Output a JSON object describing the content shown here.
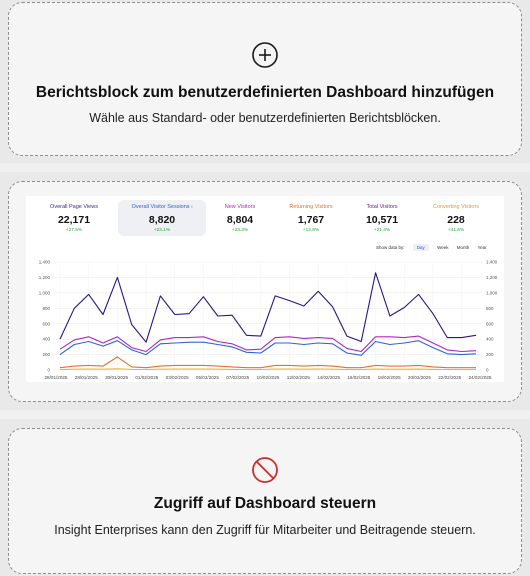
{
  "card_add": {
    "title": "Berichtsblock zum benutzerdefinierten Dashboard hinzufügen",
    "subtitle": "Wähle aus Standard- oder benutzerdefinierten Berichtsblöcken.",
    "icon": "plus-circle-icon"
  },
  "card_access": {
    "title": "Zugriff auf Dashboard steuern",
    "subtitle": "Insight Enterprises kann den Zugriff für Mitarbeiter und Beitragende steuern.",
    "icon": "no-access-icon",
    "icon_color": "#c8302e"
  },
  "metrics": [
    {
      "label": "Overall Page Views",
      "value": "22,171",
      "delta": "+27.5%",
      "color": "#3b1d8f"
    },
    {
      "label": "Overall Visitor Sessions",
      "value": "8,820",
      "delta": "+23.1%",
      "color": "#2f63d6",
      "info": "i"
    },
    {
      "label": "New Visitors",
      "value": "8,804",
      "delta": "+23.3%",
      "color": "#b024c9"
    },
    {
      "label": "Returning Visitors",
      "value": "1,767",
      "delta": "+12.8%",
      "color": "#e0742a"
    },
    {
      "label": "Total Visitors",
      "value": "10,571",
      "delta": "+21.4%",
      "color": "#6a1f8f"
    },
    {
      "label": "Converting Visitors",
      "value": "228",
      "delta": "+41.6%",
      "color": "#e89a2a"
    }
  ],
  "show_data_by": {
    "label": "Show data by:",
    "options": [
      "Day",
      "Week",
      "Month",
      "Year"
    ],
    "selected": "Day"
  },
  "chart_data": {
    "type": "line",
    "ylim": [
      0,
      1400
    ],
    "yticks": [
      "0",
      "200",
      "400",
      "600",
      "800",
      "1,000",
      "1,200",
      "1,400"
    ],
    "x_tick_labels": [
      "28/01/2025",
      "28/01/2025",
      "30/01/2025",
      "01/02/2025",
      "03/02/2025",
      "05/02/2025",
      "07/02/2025",
      "10/02/2025",
      "12/02/2025",
      "14/02/2025",
      "16/02/2025",
      "18/02/2025",
      "20/02/2025",
      "22/02/2025",
      "24/02/2025"
    ],
    "series": [
      {
        "color": "#2a1580",
        "values": [
          400,
          800,
          980,
          720,
          1200,
          590,
          360,
          960,
          720,
          730,
          950,
          700,
          710,
          450,
          440,
          960,
          900,
          830,
          1020,
          820,
          440,
          370,
          1260,
          700,
          810,
          980,
          730,
          420,
          420,
          450
        ]
      },
      {
        "color": "#b024c9",
        "values": [
          270,
          390,
          430,
          350,
          430,
          290,
          240,
          390,
          420,
          420,
          430,
          370,
          340,
          260,
          270,
          420,
          430,
          410,
          420,
          410,
          280,
          240,
          430,
          430,
          420,
          440,
          350,
          260,
          240,
          250
        ]
      },
      {
        "color": "#2f63d6",
        "values": [
          200,
          330,
          370,
          310,
          380,
          260,
          200,
          340,
          350,
          360,
          360,
          330,
          300,
          230,
          220,
          350,
          350,
          330,
          350,
          340,
          220,
          190,
          370,
          330,
          350,
          380,
          290,
          210,
          200,
          210
        ]
      },
      {
        "color": "#e0742a",
        "values": [
          30,
          50,
          60,
          50,
          170,
          40,
          30,
          50,
          60,
          60,
          60,
          50,
          40,
          30,
          30,
          60,
          60,
          50,
          60,
          50,
          30,
          30,
          60,
          50,
          50,
          60,
          40,
          30,
          30,
          30
        ]
      },
      {
        "color": "#f0b23a",
        "values": [
          5,
          10,
          12,
          10,
          15,
          8,
          6,
          10,
          12,
          12,
          12,
          10,
          8,
          6,
          6,
          12,
          12,
          10,
          12,
          10,
          6,
          6,
          12,
          10,
          10,
          12,
          8,
          6,
          6,
          6
        ]
      }
    ]
  }
}
